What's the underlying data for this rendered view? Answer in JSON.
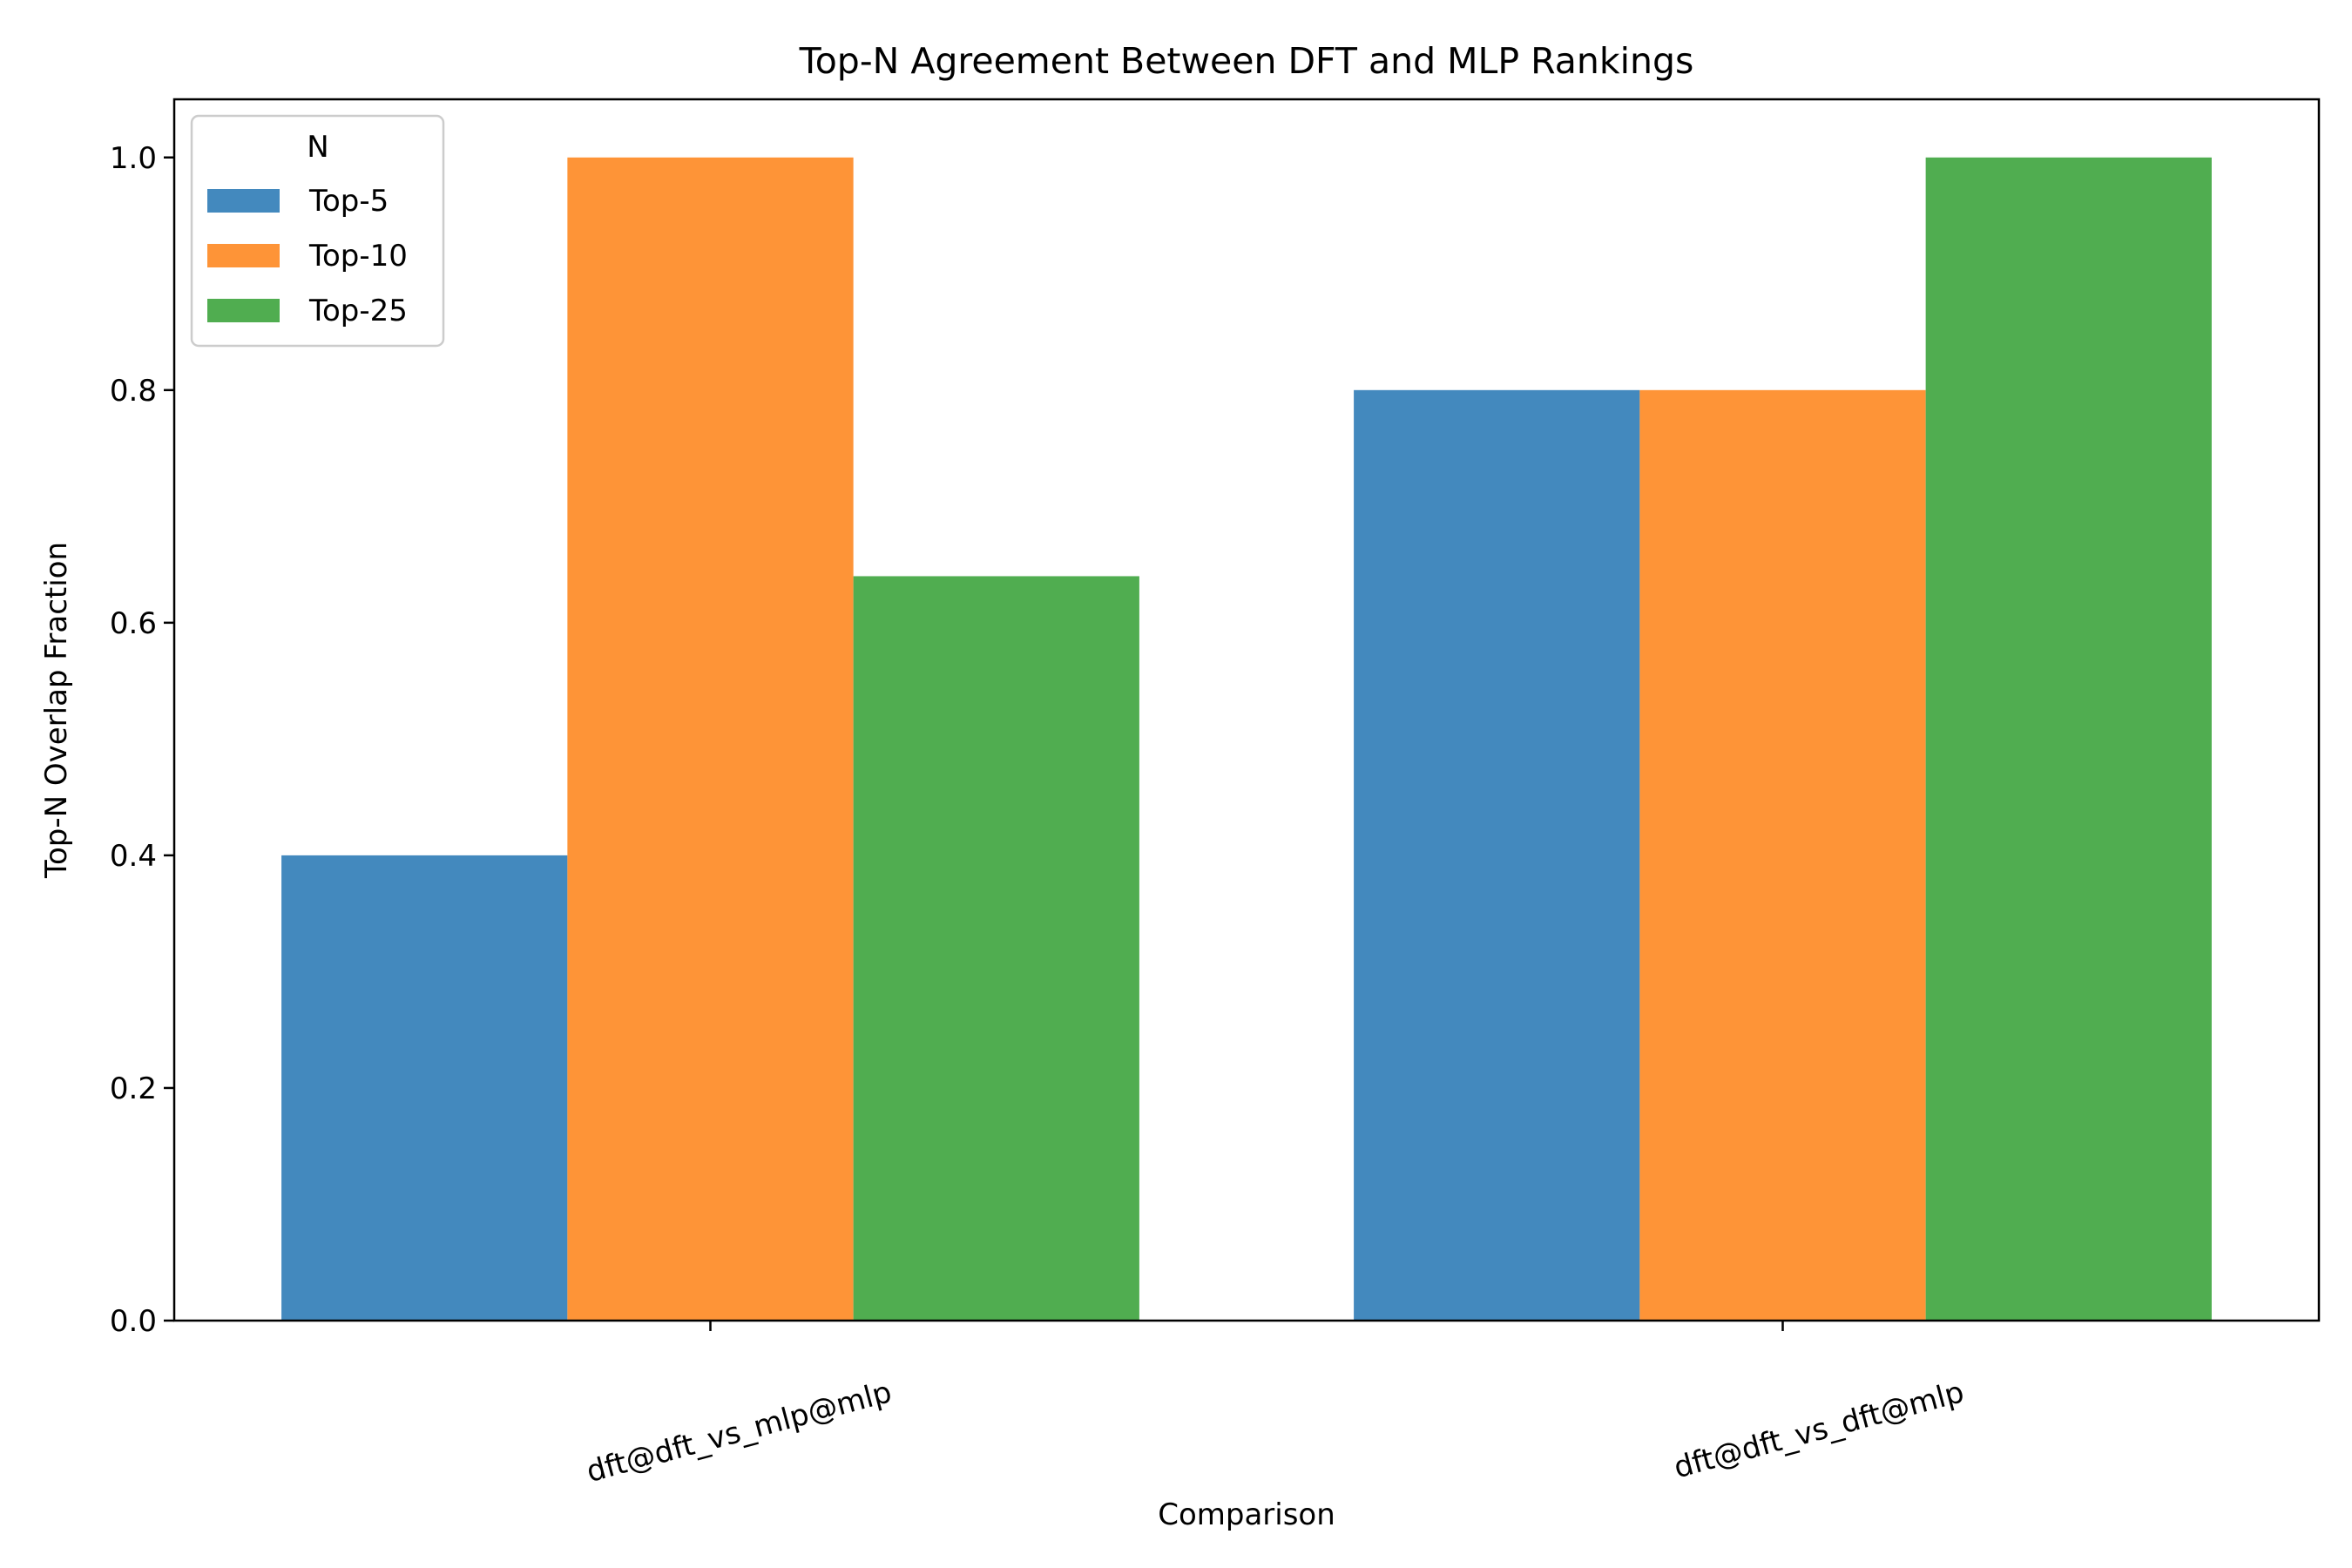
{
  "chart_data": {
    "type": "bar",
    "title": "Top-N Agreement Between DFT and MLP Rankings",
    "xlabel": "Comparison",
    "ylabel": "Top-N Overlap Fraction",
    "categories": [
      "dft@dft_vs_mlp@mlp",
      "dft@dft_vs_dft@mlp"
    ],
    "series": [
      {
        "name": "Top-5",
        "values": [
          0.4,
          0.8
        ],
        "color": "#4389be"
      },
      {
        "name": "Top-10",
        "values": [
          1.0,
          0.8
        ],
        "color": "#fe9437"
      },
      {
        "name": "Top-25",
        "values": [
          0.64,
          1.0
        ],
        "color": "#50ad50"
      }
    ],
    "ylim": [
      0,
      1.05
    ],
    "yticks": [
      0.0,
      0.2,
      0.4,
      0.6,
      0.8,
      1.0
    ],
    "ytick_labels": [
      "0.0",
      "0.2",
      "0.4",
      "0.6",
      "0.8",
      "1.0"
    ],
    "legend": {
      "title": "N",
      "placement": "top-left"
    },
    "grid": false
  }
}
